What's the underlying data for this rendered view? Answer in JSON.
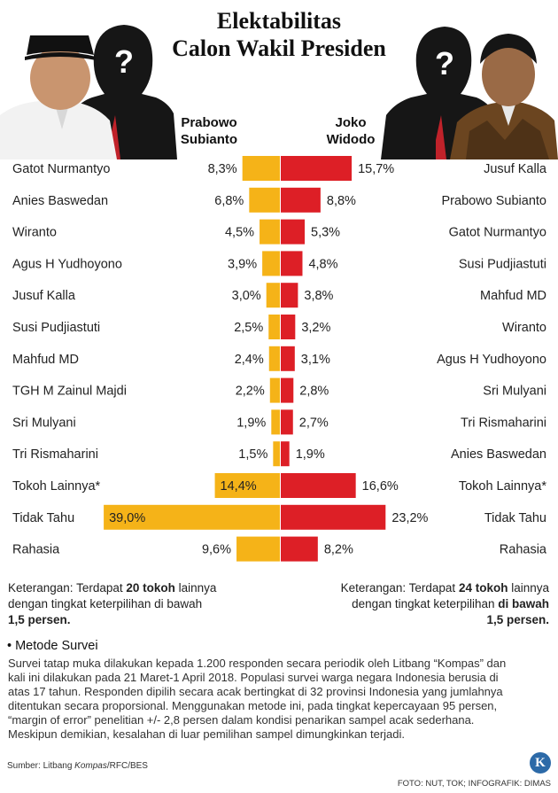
{
  "title_line1": "Elektabilitas",
  "title_line2": "Calon Wakil Presiden",
  "left_candidate": {
    "line1": "Prabowo",
    "line2": "Subianto"
  },
  "right_candidate": {
    "line1": "Joko",
    "line2": "Widodo"
  },
  "mystery_symbol": "?",
  "chart_data": {
    "type": "bar",
    "orientation": "horizontal-diverging",
    "series": [
      {
        "name": "Prabowo Subianto",
        "color": "#f5b318",
        "categories": [
          "Gatot Nurmantyo",
          "Anies Baswedan",
          "Wiranto",
          "Agus H Yudhoyono",
          "Jusuf Kalla",
          "Susi Pudjiastuti",
          "Mahfud MD",
          "TGH M Zainul Majdi",
          "Sri Mulyani",
          "Tri Rismaharini",
          "Tokoh Lainnya*",
          "Tidak Tahu",
          "Rahasia"
        ],
        "values": [
          8.3,
          6.8,
          4.5,
          3.9,
          3.0,
          2.5,
          2.4,
          2.2,
          1.9,
          1.5,
          14.4,
          39.0,
          9.6
        ],
        "labels": [
          "8,3%",
          "6,8%",
          "4,5%",
          "3,9%",
          "3,0%",
          "2,5%",
          "2,4%",
          "2,2%",
          "1,9%",
          "1,5%",
          "14,4%",
          "39,0%",
          "9,6%"
        ]
      },
      {
        "name": "Joko Widodo",
        "color": "#dd1f26",
        "categories": [
          "Jusuf Kalla",
          "Prabowo Subianto",
          "Gatot Nurmantyo",
          "Susi Pudjiastuti",
          "Mahfud MD",
          "Wiranto",
          "Agus H Yudhoyono",
          "Sri Mulyani",
          "Tri Rismaharini",
          "Anies Baswedan",
          "Tokoh Lainnya*",
          "Tidak Tahu",
          "Rahasia"
        ],
        "values": [
          15.7,
          8.8,
          5.3,
          4.8,
          3.8,
          3.2,
          3.1,
          2.8,
          2.7,
          1.9,
          16.6,
          23.2,
          8.2
        ],
        "labels": [
          "15,7%",
          "8,8%",
          "5,3%",
          "4,8%",
          "3,8%",
          "3,2%",
          "3,1%",
          "2,8%",
          "2,7%",
          "1,9%",
          "16,6%",
          "23,2%",
          "8,2%"
        ]
      }
    ]
  },
  "note_left": {
    "prefix": "Keterangan: Terdapat ",
    "count": "20 tokoh",
    "suffix": " lainnya",
    "line2": "dengan tingkat keterpilihan di bawah",
    "line3": "1,5 persen."
  },
  "note_right": {
    "prefix": "Keterangan: Terdapat ",
    "count": "24 tokoh",
    "suffix": " lainnya",
    "line2a": "dengan tingkat keterpilihan ",
    "line2b": "di bawah",
    "line3": "1,5 persen."
  },
  "method": {
    "title": "• Metode Survei",
    "lines": [
      "Survei tatap muka dilakukan kepada 1.200 responden secara periodik oleh Litbang “Kompas” dan",
      "kali ini dilakukan pada 21 Maret-1 April 2018. Populasi survei warga negara Indonesia berusia di",
      "atas 17 tahun. Responden dipilih secara acak bertingkat di 32 provinsi Indonesia yang jumlahnya",
      "ditentukan secara proporsional. Menggunakan metode ini, pada tingkat kepercayaan 95 persen,",
      "“margin  of error” penelitian +/- 2,8 persen dalam kondisi penarikan sampel acak sederhana.",
      "Meskipun demikian, kesalahan di luar pemilihan sampel dimungkinkan terjadi."
    ]
  },
  "source_prefix": "Sumber: Litbang ",
  "source_italic": "Kompas",
  "source_suffix": "/RFC/BES",
  "credit": "FOTO: NUT, TOK; INFOGRAFIK: DIMAS",
  "logo_letter": "K"
}
